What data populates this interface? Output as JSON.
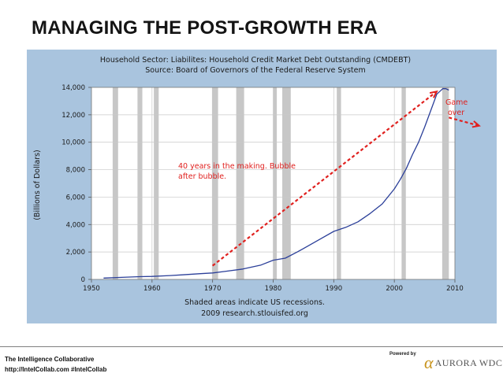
{
  "slide": {
    "title": "MANAGING THE POST-GROWTH ERA",
    "footer_org": "The Intelligence Collaborative",
    "footer_url": "http://IntelCollab.com #IntelCollab",
    "powered_by": "Powered by",
    "logo_mark": "α",
    "logo_text": "AURORA WDC"
  },
  "chart_data": {
    "type": "line",
    "title": "Household Sector: Liabilites: Household Credit Market Debt Outstanding (CMDEBT)",
    "subtitle": "Source: Board of Governors of the Federal Reserve System",
    "ylabel": "(Billions of Dollars)",
    "xlabel": "",
    "caption_line1": "Shaded areas indicate US recessions.",
    "caption_line2": "2009 research.stlouisfed.org",
    "xlim": [
      1950,
      2010
    ],
    "ylim": [
      0,
      14000
    ],
    "x_ticks": [
      1950,
      1960,
      1970,
      1980,
      1990,
      2000,
      2010
    ],
    "y_ticks": [
      0,
      2000,
      4000,
      6000,
      8000,
      10000,
      12000,
      14000
    ],
    "y_tick_labels": [
      "0",
      "2,000",
      "4,000",
      "6,000",
      "8,000",
      "10,000",
      "12,000",
      "14,000"
    ],
    "grid": true,
    "recessions": [
      [
        1953.5,
        1954.4
      ],
      [
        1957.6,
        1958.4
      ],
      [
        1960.3,
        1961.1
      ],
      [
        1969.9,
        1970.9
      ],
      [
        1973.9,
        1975.2
      ],
      [
        1980.0,
        1980.6
      ],
      [
        1981.5,
        1982.9
      ],
      [
        1990.5,
        1991.2
      ],
      [
        2001.2,
        2001.9
      ],
      [
        2007.9,
        2009.0
      ]
    ],
    "series": [
      {
        "name": "",
        "color": "#2b3f99",
        "x": [
          1952,
          1955,
          1958,
          1960,
          1963,
          1965,
          1968,
          1970,
          1972,
          1975,
          1978,
          1980,
          1982,
          1984,
          1986,
          1988,
          1990,
          1992,
          1994,
          1996,
          1998,
          2000,
          2001,
          2002,
          2003,
          2004,
          2005,
          2006,
          2007,
          2008,
          2008.5,
          2009
        ],
        "y": [
          100,
          150,
          200,
          220,
          280,
          330,
          420,
          470,
          580,
          760,
          1050,
          1400,
          1550,
          2000,
          2500,
          3000,
          3500,
          3800,
          4200,
          4800,
          5500,
          6600,
          7300,
          8100,
          9100,
          10000,
          11100,
          12300,
          13500,
          13900,
          13900,
          13800
        ]
      }
    ],
    "annotations": [
      {
        "text_line1": "40 years in the making.  Bubble",
        "text_line2": "after bubble.",
        "color": "#e0201e"
      },
      {
        "text_line1": "Game",
        "text_line2": "over",
        "color": "#e0201e"
      }
    ],
    "trend_arrow": {
      "x0": 1970,
      "y0": 1000,
      "x1": 2007,
      "y1": 13700,
      "color": "#e0201e"
    },
    "fall_arrow": {
      "x0": 2009,
      "y0": 11800,
      "x1": 2014,
      "y1": 11200,
      "color": "#e0201e"
    },
    "colors": {
      "frame_bg": "#a9c4de",
      "plot_bg": "#ffffff",
      "grid": "#c8c8c8",
      "recession": "#c7c7c7",
      "text": "#1a1a1a"
    }
  }
}
